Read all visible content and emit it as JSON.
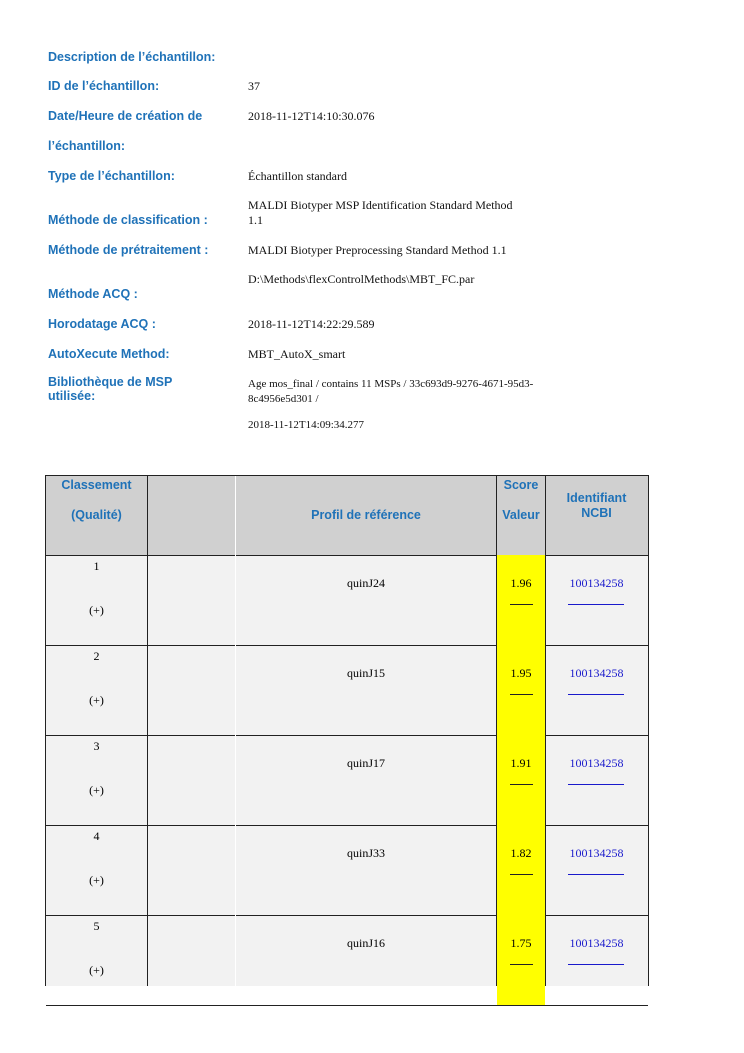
{
  "info": [
    {
      "label": "Description de l’échantillon:",
      "value": ""
    },
    {
      "label": "ID de l’échantillon:",
      "value": "37"
    },
    {
      "label": "Date/Heure de création de l’échantillon:",
      "value": "2018-11-12T14:10:30.076"
    },
    {
      "label": "Type de l’échantillon:",
      "value": "Échantillon standard"
    },
    {
      "label": "Méthode de classification :",
      "value": "MALDI Biotyper MSP Identification Standard Method 1.1"
    },
    {
      "label": "Méthode de prétraitement :",
      "value": "MALDI Biotyper Preprocessing Standard Method 1.1"
    },
    {
      "label": "Méthode ACQ :",
      "value": "D:\\Methods\\flexControlMethods\\MBT_FC.par"
    },
    {
      "label": "Horodatage ACQ :",
      "value": "2018-11-12T14:22:29.589"
    },
    {
      "label": "AutoXecute Method:",
      "value": "MBT_AutoX_smart"
    },
    {
      "label": "Bibliothèque de MSP utilisée:",
      "value": "Age mos_final / contains 11 MSPs / 33c693d9-9276-4671-95d3-8c4956e5d301 /",
      "value2": "2018-11-12T14:09:34.277"
    }
  ],
  "table": {
    "headers": {
      "rank": "Classement",
      "quality": "(Qualité)",
      "profile": "Profil de référence",
      "score1": "Score",
      "score2": "Valeur",
      "ncbi1": "Identifiant",
      "ncbi2": "NCBI"
    },
    "rows": [
      {
        "rank": "1",
        "quality": "(+)",
        "profile": "quinJ24",
        "score": "1.96",
        "ncbi": "100134258"
      },
      {
        "rank": "2",
        "quality": "(+)",
        "profile": "quinJ15",
        "score": "1.95",
        "ncbi": "100134258"
      },
      {
        "rank": "3",
        "quality": "(+)",
        "profile": "quinJ17",
        "score": "1.91",
        "ncbi": "100134258"
      },
      {
        "rank": "4",
        "quality": "(+)",
        "profile": "quinJ33",
        "score": "1.82",
        "ncbi": "100134258"
      },
      {
        "rank": "5",
        "quality": "(+)",
        "profile": "quinJ16",
        "score": "1.75",
        "ncbi": "100134258"
      }
    ]
  },
  "colors": {
    "label": "#1f72b8",
    "highlight": "#ffff00",
    "link": "#1a1acc"
  }
}
